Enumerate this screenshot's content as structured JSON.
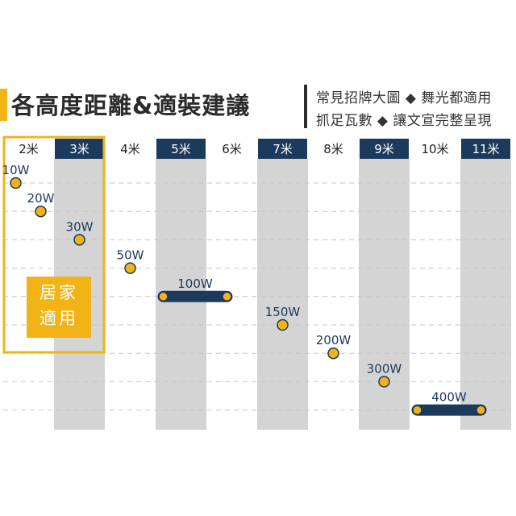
{
  "heading": {
    "title": "各高度距離&適裝建議",
    "note_line1": "常見招牌大圖 ◆ 舞光都適用",
    "note_line2": "抓足瓦數 ◆ 讓文宣完整呈現"
  },
  "home_box": {
    "line1": "居家",
    "line2": "適用"
  },
  "colors": {
    "navy": "#1b3a5c",
    "gray": "#d4d4d4",
    "gold": "#f2b317",
    "dot_fill": "#f2b317",
    "dot_stroke": "#1b3a5c"
  },
  "chart_data": {
    "type": "scatter",
    "categories": [
      "2米",
      "3米",
      "4米",
      "5米",
      "6米",
      "7米",
      "8米",
      "9米",
      "10米",
      "11米"
    ],
    "dark_header_categories": [
      "3米",
      "5米",
      "7米",
      "9米",
      "11米"
    ],
    "home_use_categories": [
      "2米",
      "3米"
    ],
    "points": [
      {
        "label": "10W",
        "from": "2米",
        "to": "2米"
      },
      {
        "label": "20W",
        "from": "2米",
        "to": "2米"
      },
      {
        "label": "30W",
        "from": "3米",
        "to": "3米"
      },
      {
        "label": "50W",
        "from": "4米",
        "to": "4米"
      },
      {
        "label": "100W",
        "from": "5米",
        "to": "6米"
      },
      {
        "label": "150W",
        "from": "7米",
        "to": "7米"
      },
      {
        "label": "200W",
        "from": "8米",
        "to": "8米"
      },
      {
        "label": "300W",
        "from": "9米",
        "to": "9米"
      },
      {
        "label": "400W",
        "from": "10米",
        "to": "11米"
      }
    ]
  }
}
